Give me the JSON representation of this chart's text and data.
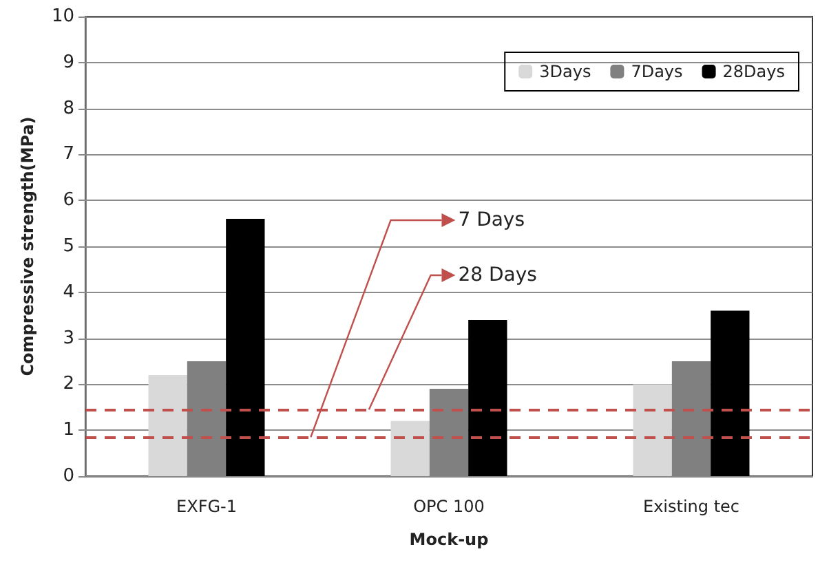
{
  "chart_data": {
    "type": "bar",
    "xlabel": "Mock-up",
    "ylabel": "Compressive strength(MPa)",
    "categories": [
      "EXFG-1",
      "OPC 100",
      "Existing tec"
    ],
    "series": [
      {
        "name": "3Days",
        "color": "#d9d9d9",
        "values": [
          2.2,
          1.2,
          2.0
        ]
      },
      {
        "name": "7Days",
        "color": "#808080",
        "values": [
          2.5,
          1.9,
          2.5
        ]
      },
      {
        "name": "28Days",
        "color": "#000000",
        "values": [
          5.6,
          3.4,
          3.6
        ]
      }
    ],
    "ylim": [
      0,
      10
    ],
    "yticks": [
      0,
      1,
      2,
      3,
      4,
      5,
      6,
      7,
      8,
      9,
      10
    ],
    "grid": "y",
    "legend": "top right",
    "ref_lines": [
      {
        "axis": "y",
        "value": 0.85,
        "label": "7 Days",
        "color": "#c0504d",
        "line_style": "dashed"
      },
      {
        "axis": "y",
        "value": 1.45,
        "label": "28 Days",
        "color": "#c0504d",
        "line_style": "dashed"
      }
    ]
  }
}
